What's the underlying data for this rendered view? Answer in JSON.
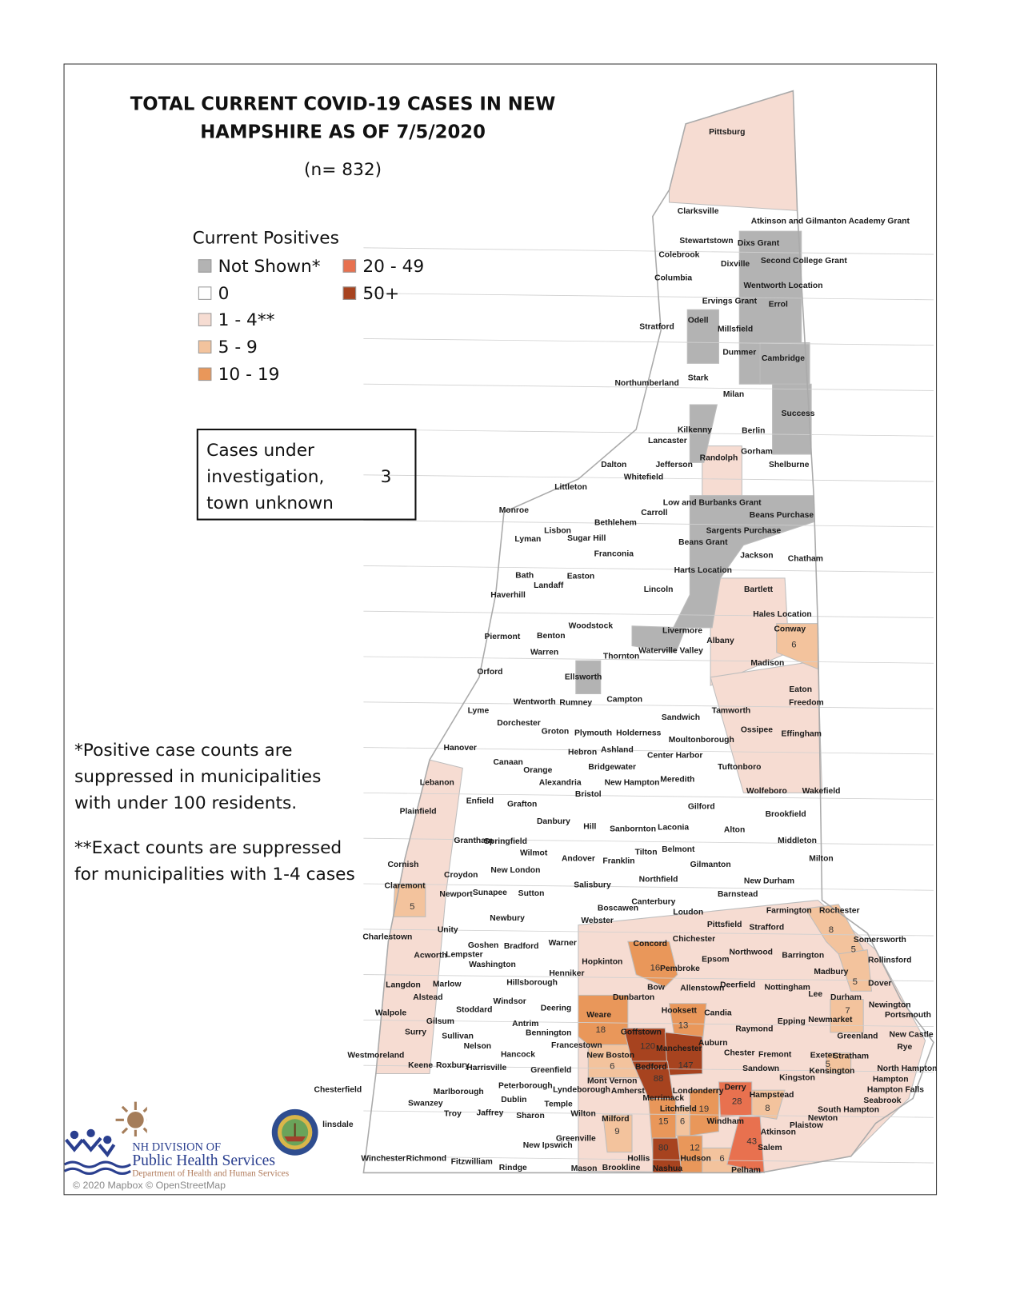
{
  "title_line1": "TOTAL CURRENT COVID-19 CASES IN NEW",
  "title_line2": "HAMPSHIRE AS OF 7/5/2020",
  "n_label": "(n= 832)",
  "legend": {
    "title": "Current Positives",
    "items": [
      {
        "label": "Not Shown*",
        "color": "#b3b3b3"
      },
      {
        "label": "0",
        "color": "#ffffff"
      },
      {
        "label": "1 - 4**",
        "color": "#f6dcd2"
      },
      {
        "label": "5 - 9",
        "color": "#f3c39d"
      },
      {
        "label": "10 - 19",
        "color": "#e9975a"
      },
      {
        "label": "20 - 49",
        "color": "#e8714f"
      },
      {
        "label": "50+",
        "color": "#a7431f"
      }
    ]
  },
  "unknown_box": {
    "label_line1": "Cases under",
    "label_line2": "investigation,",
    "label_line3": "town unknown",
    "value": "3"
  },
  "notes": {
    "note1_line1": "*Positive case counts are",
    "note1_line2": "suppressed in municipalities",
    "note1_line3": "with under 100 residents.",
    "note2_line1": "**Exact counts are suppressed",
    "note2_line2": "for municipalities with 1-4 cases"
  },
  "towns": [
    "Pittsburg",
    "Clarksville",
    "Atkinson and Gilmanton Academy Grant",
    "Stewartstown",
    "Dixs Grant",
    "Colebrook",
    "Dixville",
    "Second College Grant",
    "Columbia",
    "Wentworth Location",
    "Ervings Grant",
    "Errol",
    "Odell",
    "Stratford",
    "Millsfield",
    "Dummer",
    "Cambridge",
    "Stark",
    "Northumberland",
    "Milan",
    "Success",
    "Kilkenny",
    "Berlin",
    "Lancaster",
    "Gorham",
    "Randolph",
    "Dalton",
    "Jefferson",
    "Shelburne",
    "Whitefield",
    "Littleton",
    "Monroe",
    "Low and Burbanks Grant",
    "Carroll",
    "Beans Purchase",
    "Bethlehem",
    "Sargents Purchase",
    "Lisbon",
    "Sugar Hill",
    "Lyman",
    "Beans Grant",
    "Franconia",
    "Jackson",
    "Chatham",
    "Harts Location",
    "Bath",
    "Easton",
    "Landaff",
    "Lincoln",
    "Bartlett",
    "Haverhill",
    "Hales Location",
    "Woodstock",
    "Conway",
    "Livermore",
    "Piermont",
    "Benton",
    "Albany",
    "Waterville Valley",
    "Warren",
    "Thornton",
    "Madison",
    "Orford",
    "Ellsworth",
    "Eaton",
    "Campton",
    "Wentworth",
    "Rumney",
    "Freedom",
    "Lyme",
    "Sandwich",
    "Tamworth",
    "Dorchester",
    "Groton",
    "Plymouth",
    "Holderness",
    "Ossipee",
    "Effingham",
    "Moultonborough",
    "Hanover",
    "Hebron",
    "Ashland",
    "Center Harbor",
    "Canaan",
    "Tuftonboro",
    "Bridgewater",
    "Orange",
    "Alexandria",
    "New Hampton",
    "Meredith",
    "Lebanon",
    "Wolfeboro",
    "Wakefield",
    "Bristol",
    "Enfield",
    "Grafton",
    "Gilford",
    "Plainfield",
    "Brookfield",
    "Danbury",
    "Hill",
    "Sanbornton",
    "Laconia",
    "Alton",
    "Grantham",
    "Springfield",
    "Middleton",
    "Wilmot",
    "Tilton",
    "Belmont",
    "Andover",
    "Franklin",
    "Milton",
    "Cornish",
    "Gilmanton",
    "New London",
    "Croydon",
    "Northfield",
    "New Durham",
    "Salisbury",
    "Claremont",
    "Newport",
    "Sunapee",
    "Sutton",
    "Barnstead",
    "Canterbury",
    "Boscawen",
    "Farmington",
    "Rochester",
    "Loudon",
    "Newbury",
    "Webster",
    "Pittsfield",
    "Strafford",
    "Unity",
    "Charlestown",
    "Chichester",
    "Somersworth",
    "Goshen",
    "Bradford",
    "Warner",
    "Concord",
    "Acworth",
    "Lempster",
    "Northwood",
    "Barrington",
    "Washington",
    "Hopkinton",
    "Epsom",
    "Pembroke",
    "Rollinsford",
    "Henniker",
    "Madbury",
    "Hillsborough",
    "Langdon",
    "Marlow",
    "Bow",
    "Allenstown",
    "Deerfield",
    "Nottingham",
    "Dover",
    "Alstead",
    "Dunbarton",
    "Lee",
    "Durham",
    "Windsor",
    "Deering",
    "Newington",
    "Walpole",
    "Stoddard",
    "Weare",
    "Hooksett",
    "Candia",
    "Portsmouth",
    "Gilsum",
    "Epping",
    "Newmarket",
    "Antrim",
    "Raymond",
    "Surry",
    "Bennington",
    "Goffstown",
    "Greenland",
    "New Castle",
    "Sullivan",
    "Nelson",
    "Francestown",
    "Auburn",
    "Manchester",
    "Rye",
    "Westmoreland",
    "Hancock",
    "Chester",
    "Fremont",
    "New Boston",
    "Exeter",
    "Stratham",
    "Keene",
    "Roxbury",
    "Harrisville",
    "Greenfield",
    "Sandown",
    "Bedford",
    "Kensington",
    "North Hampton",
    "Kingston",
    "Hampton",
    "Mont Vernon",
    "Peterborough",
    "Lyndeborough",
    "Amherst",
    "Londonderry",
    "Derry",
    "Chesterfield",
    "Marlborough",
    "Hampton Falls",
    "Merrimack",
    "Hampstead",
    "Dublin",
    "Seabrook",
    "Temple",
    "Swanzey",
    "Litchfield",
    "South Hampton",
    "Troy",
    "Jaffrey",
    "Sharon",
    "Wilton",
    "Newton",
    "Milford",
    "Windham",
    "linsdale",
    "Plaistow",
    "Atkinson",
    "Greenville",
    "New Ipswich",
    "Salem",
    "Winchester",
    "Richmond",
    "Fitzwilliam",
    "Hollis",
    "Hudson",
    "Rindge",
    "Mason",
    "Brookline",
    "Nashua",
    "Pelham"
  ],
  "counts": [
    {
      "town": "Conway",
      "count": "6"
    },
    {
      "town": "Claremont",
      "count": "5"
    },
    {
      "town": "Rochester",
      "count": "8"
    },
    {
      "town": "Somersworth",
      "count": "5"
    },
    {
      "town": "Dover",
      "count": "5"
    },
    {
      "town": "Durham",
      "count": "7"
    },
    {
      "town": "Concord",
      "count": "16"
    },
    {
      "town": "Weare",
      "count": "18"
    },
    {
      "town": "Hooksett",
      "count": "13"
    },
    {
      "town": "Goffstown",
      "count": "120"
    },
    {
      "town": "Manchester",
      "count": "147"
    },
    {
      "town": "Bedford",
      "count": "88"
    },
    {
      "town": "New Boston",
      "count": "6"
    },
    {
      "town": "Exeter",
      "count": "5"
    },
    {
      "town": "Derry",
      "count": "28"
    },
    {
      "town": "Hampstead",
      "count": "8"
    },
    {
      "town": "Londonderry",
      "count": "19"
    },
    {
      "town": "Merrimack",
      "count": "15"
    },
    {
      "town": "Litchfield",
      "count": "6"
    },
    {
      "town": "Milford",
      "count": "9"
    },
    {
      "town": "Nashua",
      "count": "80"
    },
    {
      "town": "Hudson",
      "count": "12"
    },
    {
      "town": "Salem",
      "count": "43"
    },
    {
      "town": "Pelham",
      "count": "6"
    }
  ],
  "logo": {
    "line1": "NH DIVISION OF",
    "line2": "Public Health Services",
    "line3": "Department of Health and Human Services"
  },
  "attribution": "© 2020 Mapbox © OpenStreetMap"
}
